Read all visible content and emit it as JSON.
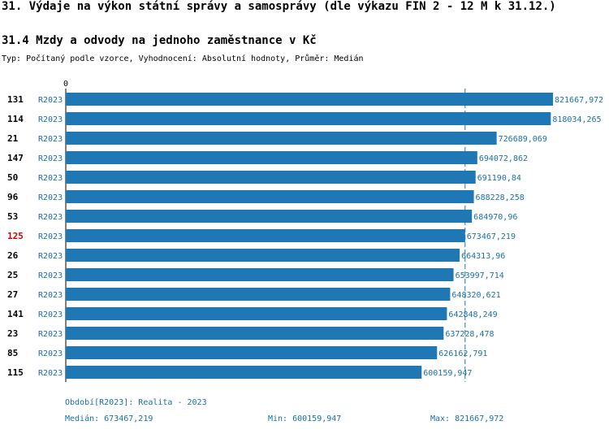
{
  "header": {
    "title": "31. Výdaje na výkon státní správy a samosprávy (dle výkazu FIN 2 - 12 M k 31.12.)",
    "subtitle": "31.4 Mzdy a odvody na jednoho zaměstnance v Kč",
    "type_line": "Typ: Počítaný podle vzorce, Vyhodnocení: Absolutní hodnoty, Průměr: Medián"
  },
  "chart_data": {
    "type": "bar",
    "orientation": "horizontal",
    "title": "31.4 Mzdy a odvody na jednoho zaměstnance v Kč",
    "axis_zero_label": "0",
    "xlim": [
      0,
      821667.972
    ],
    "median_value": 673467.219,
    "highlight_id": "125",
    "colors": {
      "bar": "#1f77b4",
      "highlight": "#cc0000",
      "label": "#1a6fa8",
      "median_line": "#1f77b4"
    },
    "rows": [
      {
        "id": "131",
        "period": "R2023",
        "value": 821667.972,
        "label": "821667,972"
      },
      {
        "id": "114",
        "period": "R2023",
        "value": 818034.265,
        "label": "818034,265"
      },
      {
        "id": "21",
        "period": "R2023",
        "value": 726689.069,
        "label": "726689,069"
      },
      {
        "id": "147",
        "period": "R2023",
        "value": 694072.862,
        "label": "694072,862"
      },
      {
        "id": "50",
        "period": "R2023",
        "value": 691190.84,
        "label": "691190,84"
      },
      {
        "id": "96",
        "period": "R2023",
        "value": 688228.258,
        "label": "688228,258"
      },
      {
        "id": "53",
        "period": "R2023",
        "value": 684970.96,
        "label": "684970,96"
      },
      {
        "id": "125",
        "period": "R2023",
        "value": 673467.219,
        "label": "673467,219"
      },
      {
        "id": "26",
        "period": "R2023",
        "value": 664313.96,
        "label": "664313,96"
      },
      {
        "id": "25",
        "period": "R2023",
        "value": 653997.714,
        "label": "653997,714"
      },
      {
        "id": "27",
        "period": "R2023",
        "value": 648320.621,
        "label": "648320,621"
      },
      {
        "id": "141",
        "period": "R2023",
        "value": 642848.249,
        "label": "642848,249"
      },
      {
        "id": "23",
        "period": "R2023",
        "value": 637228.478,
        "label": "637228,478"
      },
      {
        "id": "85",
        "period": "R2023",
        "value": 626162.791,
        "label": "626162,791"
      },
      {
        "id": "115",
        "period": "R2023",
        "value": 600159.947,
        "label": "600159,947"
      }
    ]
  },
  "footer": {
    "period_note": "Období[R2023]: Realita - 2023",
    "median": "Medián: 673467,219",
    "min": "Min: 600159,947",
    "max": "Max: 821667,972"
  }
}
